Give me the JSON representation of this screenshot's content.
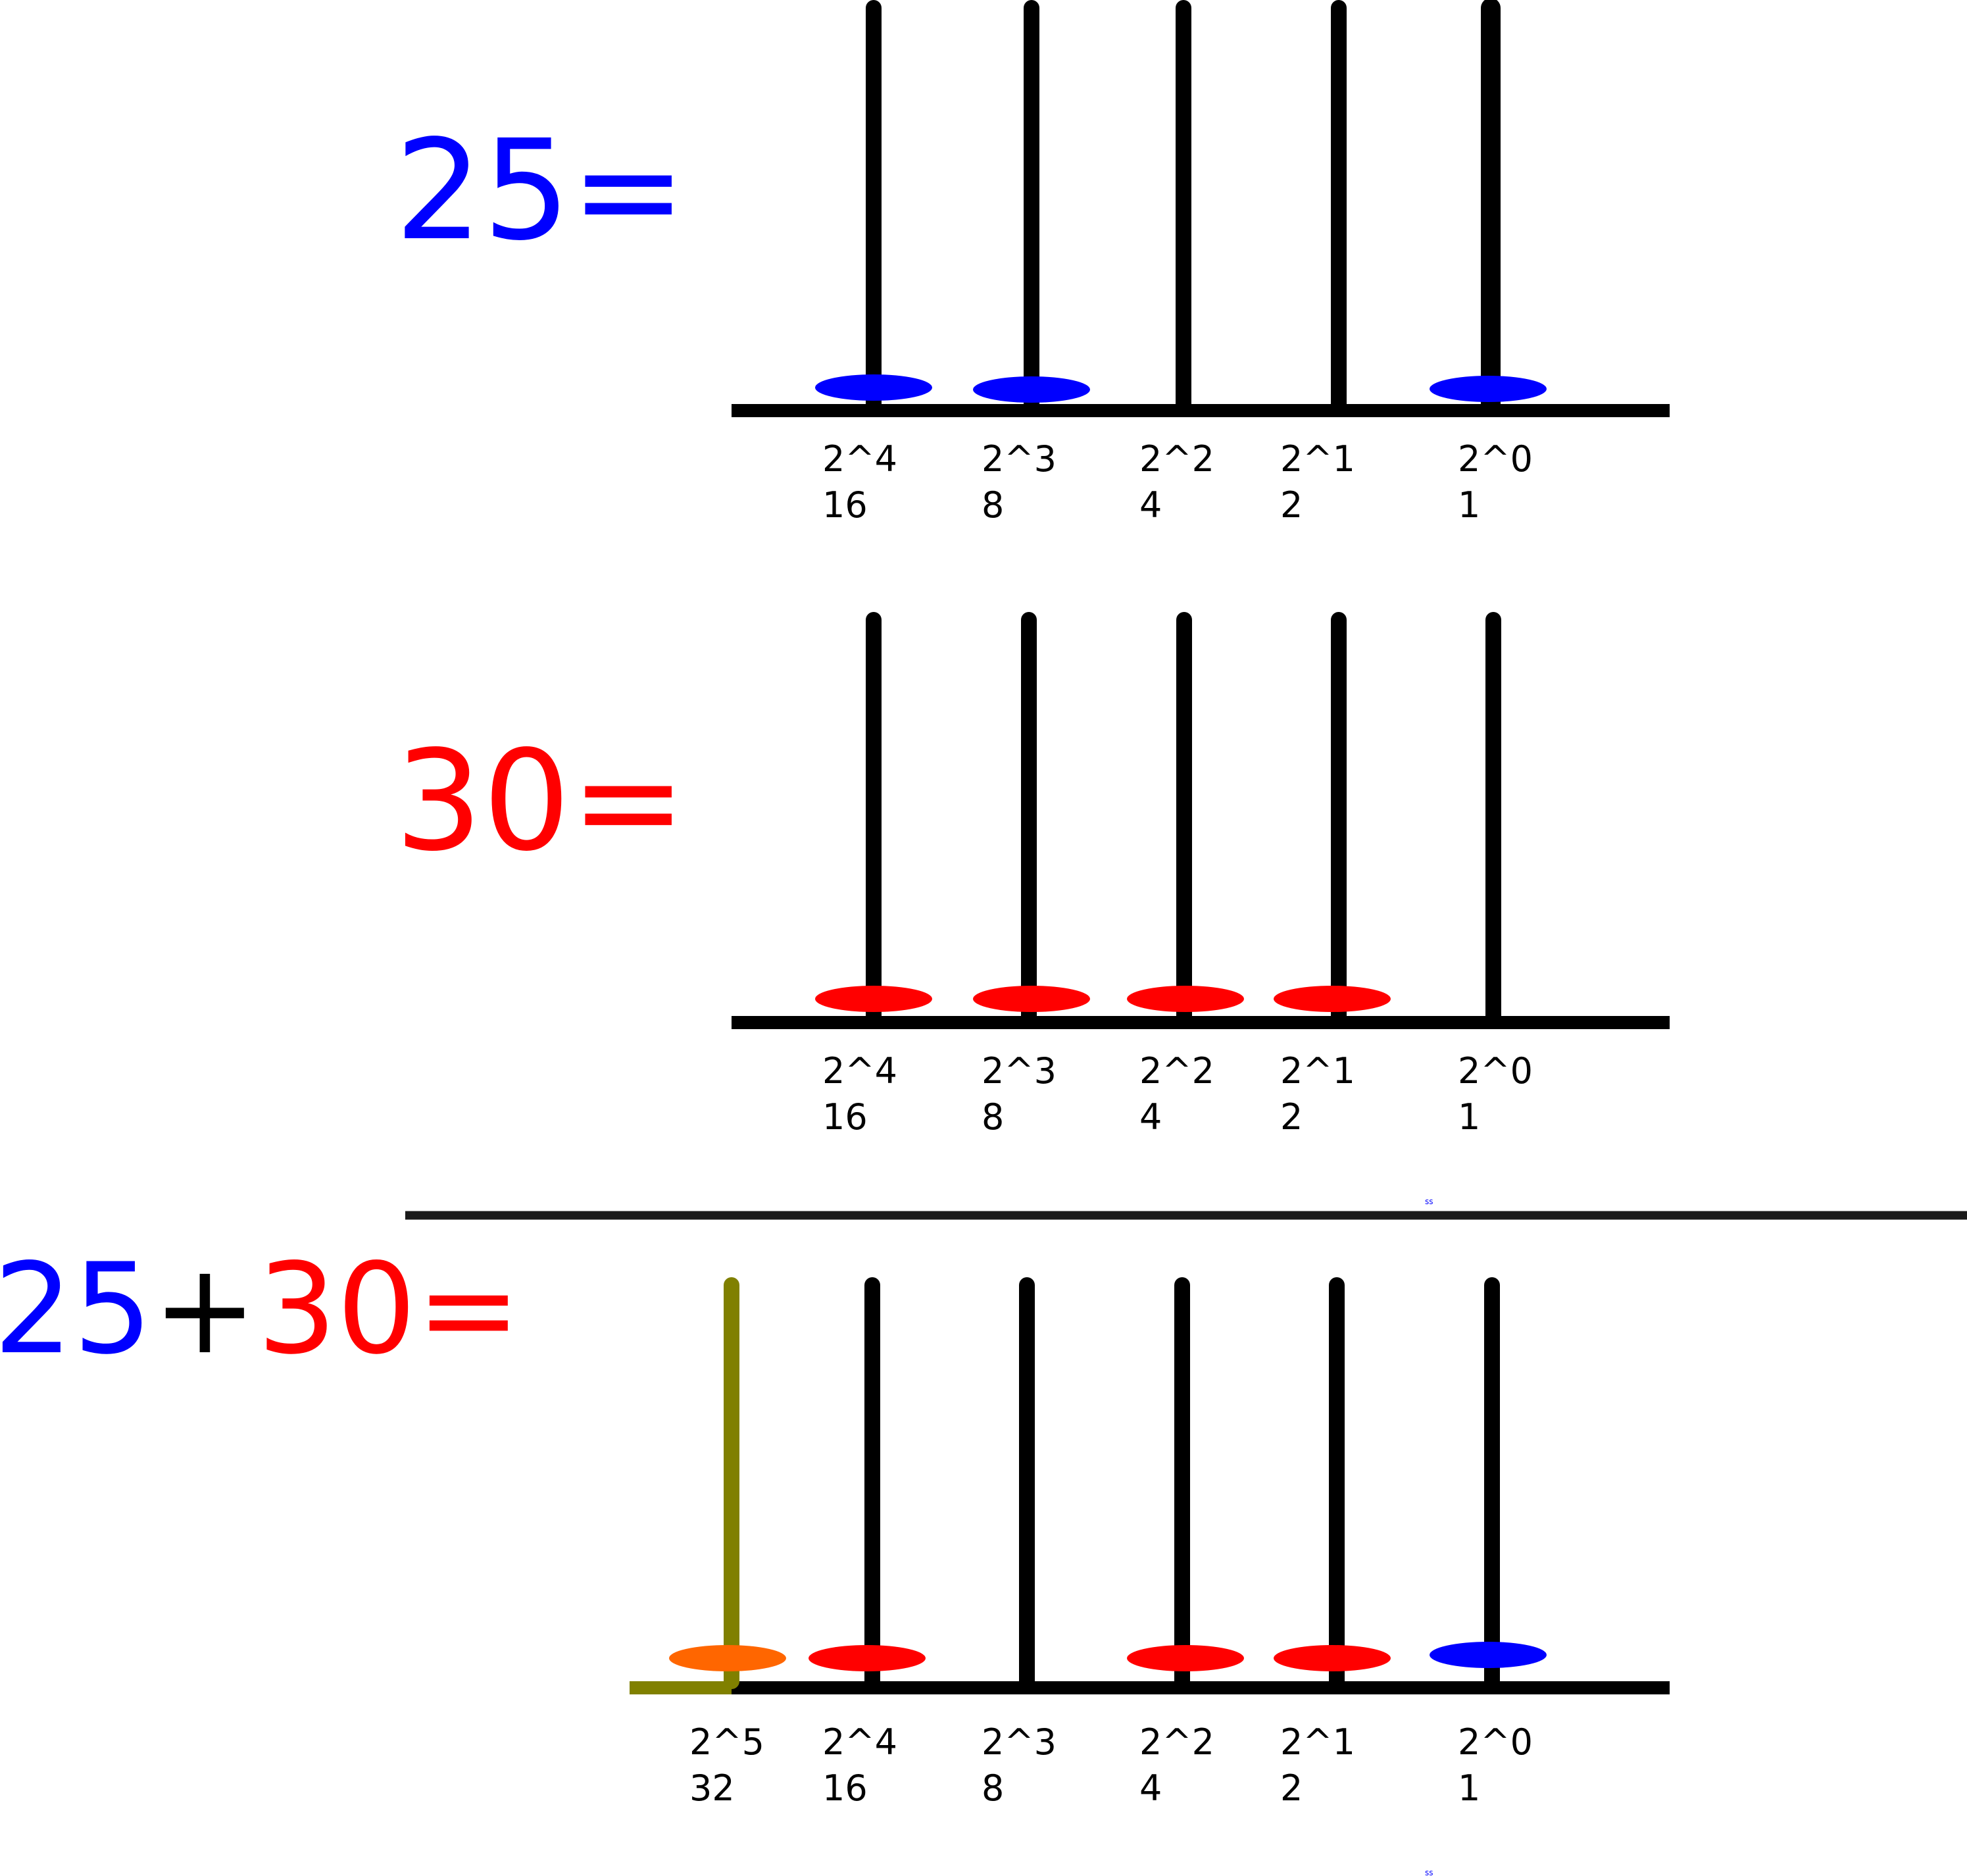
{
  "colors": {
    "blue": "#0000ff",
    "red": "#ff0000",
    "black": "#000000",
    "orange": "#ff6600",
    "olive": "#808000",
    "divider": "#1a1a1a"
  },
  "panel_1": {
    "equation": {
      "value": "25",
      "equals": "="
    },
    "rods": [
      {
        "power": "2^4",
        "weight": "16",
        "bead": "blue"
      },
      {
        "power": "2^3",
        "weight": "8",
        "bead": "blue"
      },
      {
        "power": "2^2",
        "weight": "4",
        "bead": null
      },
      {
        "power": "2^1",
        "weight": "2",
        "bead": null
      },
      {
        "power": "2^0",
        "weight": "1",
        "bead": "blue"
      }
    ]
  },
  "panel_2": {
    "equation": {
      "value": "30",
      "equals": "="
    },
    "rods": [
      {
        "power": "2^4",
        "weight": "16",
        "bead": "red"
      },
      {
        "power": "2^3",
        "weight": "8",
        "bead": "red"
      },
      {
        "power": "2^2",
        "weight": "4",
        "bead": "red"
      },
      {
        "power": "2^1",
        "weight": "2",
        "bead": "red"
      },
      {
        "power": "2^0",
        "weight": "1",
        "bead": null
      }
    ]
  },
  "panel_3": {
    "equation": {
      "a": "25",
      "plus": "+",
      "b": "30",
      "equals": "="
    },
    "rods": [
      {
        "power": "2^5",
        "weight": "32",
        "bead": "orange",
        "rod_color": "olive"
      },
      {
        "power": "2^4",
        "weight": "16",
        "bead": "red"
      },
      {
        "power": "2^3",
        "weight": "8",
        "bead": null
      },
      {
        "power": "2^2",
        "weight": "4",
        "bead": "red"
      },
      {
        "power": "2^1",
        "weight": "2",
        "bead": "red"
      },
      {
        "power": "2^0",
        "weight": "1",
        "bead": "blue"
      }
    ]
  },
  "marks": {
    "small_1": "ss",
    "small_2": "ss"
  }
}
